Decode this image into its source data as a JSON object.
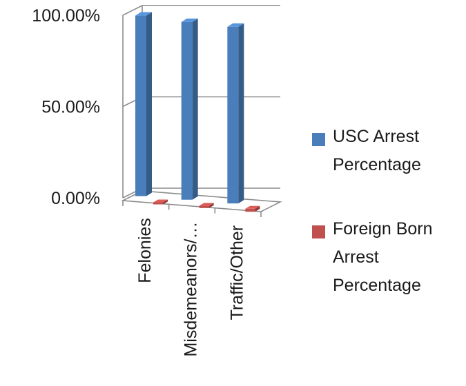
{
  "chart_data": {
    "type": "bar",
    "title": "",
    "xlabel": "",
    "ylabel": "",
    "categories": [
      "Felonies",
      "Misdemeanors/…",
      "Traffic/Other"
    ],
    "series": [
      {
        "name": "USC Arrest Percentage",
        "values": [
          99.3,
          97.8,
          97.2
        ],
        "color": "#4a7ebb"
      },
      {
        "name": "Foreign Born Arrest Percentage",
        "values": [
          0.7,
          2.2,
          2.8
        ],
        "color": "#c0504d"
      }
    ],
    "ylim": [
      0,
      100
    ],
    "yticks": [
      "0.00%",
      "50.00%",
      "100.00%"
    ],
    "grid": true,
    "legend_position": "right",
    "style": "3d-column"
  }
}
